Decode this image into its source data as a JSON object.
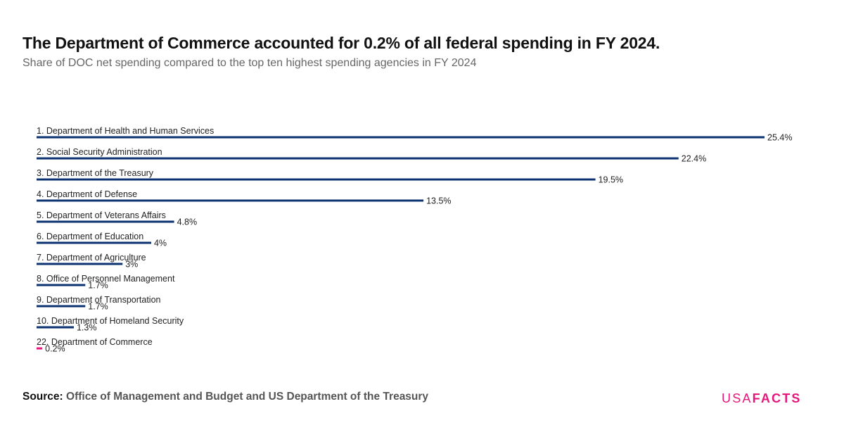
{
  "header": {
    "title": "The Department of Commerce accounted for 0.2% of all federal spending in FY 2024.",
    "subtitle": "Share of DOC net spending compared to the top ten highest spending agencies in FY 2024"
  },
  "footer": {
    "source_label": "Source:",
    "source_text": "Office of Management and Budget and US Department of the Treasury"
  },
  "logo": {
    "usa": "USA",
    "facts": "FACTS"
  },
  "colors": {
    "bar": "#0c3271",
    "highlight": "#e6177a",
    "text": "#222222"
  },
  "chart_data": {
    "type": "bar",
    "orientation": "horizontal",
    "title": "The Department of Commerce accounted for 0.2% of all federal spending in FY 2024.",
    "subtitle": "Share of DOC net spending compared to the top ten highest spending agencies in FY 2024",
    "xlabel": "",
    "ylabel": "",
    "xlim": [
      0,
      25.4
    ],
    "grid": false,
    "legend": "none",
    "categories": [
      "1. Department of Health and Human Services",
      "2. Social Security Administration",
      "3. Department of the Treasury",
      "4. Department of Defense",
      "5. Department of Veterans Affairs",
      "6. Department of Education",
      "7. Department of Agriculture",
      "8. Office of Personnel Management",
      "9. Department of Transportation",
      "10. Department of Homeland Security",
      "22. Department of Commerce"
    ],
    "values": [
      25.4,
      22.4,
      19.5,
      13.5,
      4.8,
      4,
      3,
      1.7,
      1.7,
      1.3,
      0.2
    ],
    "value_labels": [
      "25.4%",
      "22.4%",
      "19.5%",
      "13.5%",
      "4.8%",
      "4%",
      "3%",
      "1.7%",
      "1.7%",
      "1.3%",
      "0.2%"
    ],
    "highlight_index": 10
  }
}
